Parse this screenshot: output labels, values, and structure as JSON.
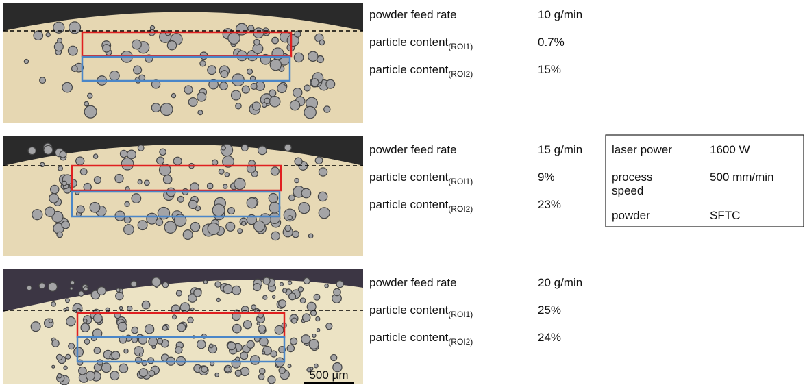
{
  "panels": [
    {
      "feed_rate": {
        "label": "powder feed rate",
        "value": "10 g/min"
      },
      "roi1": {
        "label": "particle content",
        "sub": "(ROI1)",
        "value": "0.7%"
      },
      "roi2": {
        "label": "particle content",
        "sub": "(ROI2)",
        "value": "15%"
      }
    },
    {
      "feed_rate": {
        "label": "powder feed rate",
        "value": "15 g/min"
      },
      "roi1": {
        "label": "particle content",
        "sub": "(ROI1)",
        "value": "9%"
      },
      "roi2": {
        "label": "particle content",
        "sub": "(ROI2)",
        "value": "23%"
      }
    },
    {
      "feed_rate": {
        "label": "powder feed rate",
        "value": "20 g/min"
      },
      "roi1": {
        "label": "particle content",
        "sub": "(ROI1)",
        "value": "25%"
      },
      "roi2": {
        "label": "particle content",
        "sub": "(ROI2)",
        "value": "24%"
      }
    }
  ],
  "parameters": [
    {
      "label": "laser power",
      "value": "1600 W"
    },
    {
      "label": "process speed",
      "value": "500 mm/min"
    },
    {
      "label": "powder",
      "value": "SFTC"
    }
  ],
  "scale_bar": "500 µm"
}
